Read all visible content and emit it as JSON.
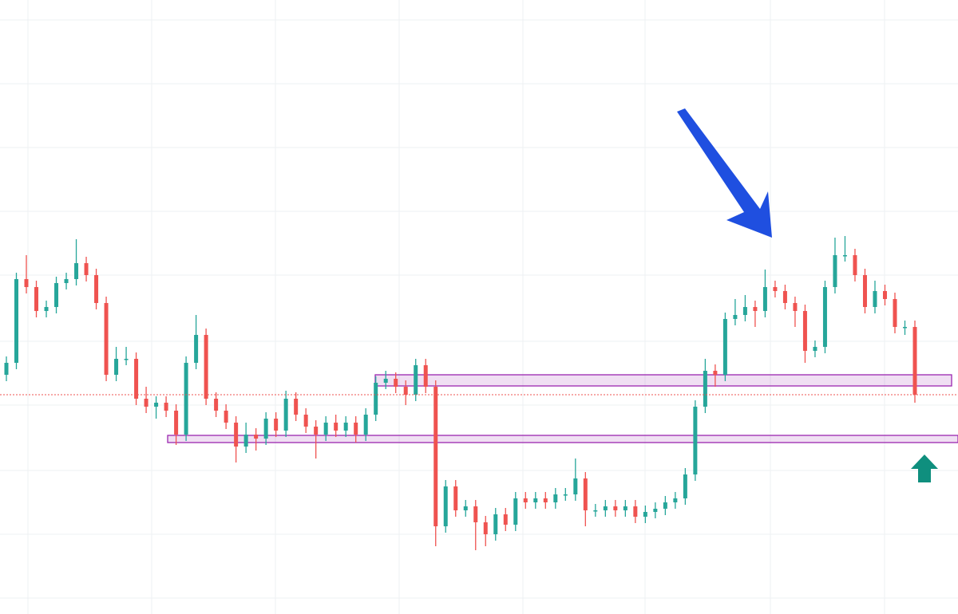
{
  "chart_data": {
    "type": "candlestick",
    "up_color": "#26a69a",
    "down_color": "#ef5350",
    "ylim": [
      0,
      770
    ],
    "open": [
      300,
      315,
      420,
      410,
      380,
      385,
      415,
      420,
      440,
      425,
      390,
      300,
      320,
      320,
      270,
      260,
      265,
      255,
      225,
      315,
      350,
      270,
      255,
      240,
      210,
      225,
      220,
      245,
      230,
      270,
      250,
      235,
      225,
      240,
      230,
      240,
      225,
      250,
      290,
      295,
      285,
      275,
      312,
      285,
      110,
      160,
      130,
      135,
      115,
      100,
      125,
      112,
      145,
      140,
      145,
      140,
      150,
      150,
      170,
      130,
      130,
      135,
      130,
      135,
      122,
      128,
      132,
      140,
      145,
      175,
      260,
      305,
      300,
      370,
      375,
      385,
      380,
      410,
      405,
      390,
      380,
      330,
      335,
      410,
      450,
      450,
      425,
      385,
      405,
      395,
      360,
      360
    ],
    "high": [
      323,
      428,
      450,
      418,
      393,
      423,
      428,
      470,
      448,
      433,
      398,
      335,
      335,
      328,
      285,
      273,
      273,
      263,
      323,
      375,
      358,
      278,
      263,
      248,
      240,
      233,
      253,
      253,
      280,
      278,
      258,
      243,
      248,
      250,
      248,
      248,
      258,
      298,
      305,
      303,
      293,
      320,
      320,
      293,
      168,
      168,
      143,
      143,
      123,
      133,
      133,
      153,
      153,
      153,
      153,
      158,
      158,
      195,
      178,
      138,
      143,
      143,
      143,
      143,
      136,
      140,
      148,
      153,
      183,
      268,
      320,
      313,
      378,
      395,
      400,
      393,
      432,
      418,
      413,
      398,
      388,
      343,
      418,
      472,
      474,
      458,
      433,
      418,
      413,
      403,
      368,
      368
    ],
    "low": [
      292,
      307,
      402,
      372,
      372,
      377,
      407,
      412,
      417,
      382,
      292,
      292,
      312,
      262,
      252,
      245,
      247,
      212,
      217,
      307,
      262,
      247,
      232,
      190,
      202,
      205,
      212,
      222,
      222,
      242,
      227,
      195,
      217,
      222,
      222,
      215,
      217,
      242,
      282,
      277,
      262,
      267,
      277,
      85,
      102,
      122,
      122,
      80,
      85,
      92,
      104,
      104,
      132,
      132,
      132,
      132,
      142,
      142,
      110,
      122,
      122,
      122,
      122,
      114,
      114,
      120,
      124,
      132,
      137,
      167,
      252,
      285,
      292,
      362,
      367,
      360,
      372,
      397,
      382,
      360,
      315,
      322,
      327,
      402,
      442,
      417,
      377,
      377,
      387,
      352,
      350,
      265
    ],
    "close": [
      315,
      420,
      410,
      380,
      385,
      415,
      420,
      440,
      425,
      390,
      300,
      320,
      320,
      270,
      260,
      265,
      255,
      225,
      315,
      350,
      270,
      255,
      240,
      210,
      225,
      220,
      245,
      230,
      270,
      250,
      235,
      225,
      240,
      230,
      240,
      225,
      250,
      290,
      295,
      285,
      275,
      312,
      285,
      110,
      160,
      130,
      135,
      115,
      100,
      125,
      112,
      145,
      140,
      145,
      140,
      150,
      150,
      170,
      130,
      130,
      135,
      130,
      135,
      122,
      128,
      132,
      140,
      145,
      175,
      260,
      305,
      300,
      370,
      375,
      385,
      380,
      410,
      405,
      390,
      380,
      330,
      335,
      410,
      450,
      450,
      425,
      385,
      405,
      395,
      360,
      360,
      275
    ],
    "zones": [
      {
        "top": 300,
        "bottom": 286,
        "color": "#9c27b0"
      },
      {
        "top": 224,
        "bottom": 215,
        "color": "#9c27b0"
      }
    ],
    "price_line_color": "#ef5350"
  }
}
